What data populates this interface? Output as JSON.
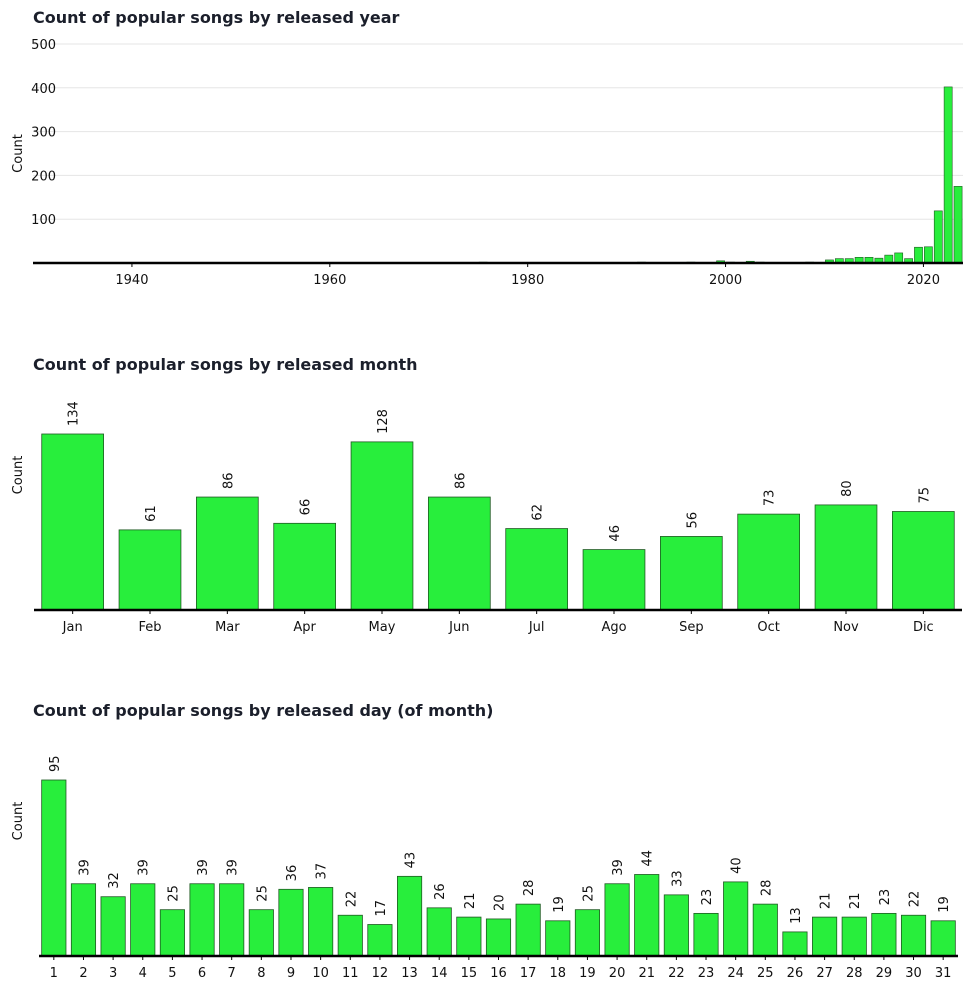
{
  "colors": {
    "bar_fill": "#28ee3c",
    "bar_stroke": "#1f5a22",
    "axis": "#000000",
    "grid": "#e5e5e5",
    "title": "#1b1f2b"
  },
  "chart_data": [
    {
      "type": "bar",
      "title": "Count of popular songs by released year",
      "xlabel": "",
      "ylabel": "Count",
      "x_ticks": [
        "1940",
        "1960",
        "1980",
        "2000",
        "2020"
      ],
      "y_ticks": [
        "100",
        "200",
        "300",
        "400",
        "500"
      ],
      "xlim": [
        1930,
        2024
      ],
      "ylim": [
        0,
        500
      ],
      "grid": true,
      "x": [
        1930,
        1942,
        1946,
        1950,
        1952,
        1957,
        1958,
        1959,
        1968,
        1970,
        1971,
        1973,
        1975,
        1979,
        1983,
        1984,
        1985,
        1986,
        1987,
        1991,
        1992,
        1994,
        1995,
        1996,
        1997,
        1998,
        1999,
        2000,
        2002,
        2003,
        2004,
        2005,
        2007,
        2008,
        2010,
        2011,
        2012,
        2013,
        2014,
        2015,
        2016,
        2017,
        2018,
        2019,
        2020,
        2021,
        2022,
        2023
      ],
      "values": [
        1,
        1,
        1,
        1,
        1,
        1,
        1,
        1,
        1,
        1,
        1,
        1,
        2,
        1,
        1,
        1,
        1,
        1,
        1,
        2,
        1,
        1,
        1,
        2,
        1,
        1,
        5,
        2,
        4,
        2,
        1,
        1,
        1,
        2,
        7,
        10,
        10,
        13,
        13,
        11,
        18,
        23,
        10,
        36,
        37,
        119,
        402,
        175
      ]
    },
    {
      "type": "bar",
      "title": "Count of popular songs by released month",
      "xlabel": "",
      "ylabel": "Count",
      "categories": [
        "Jan",
        "Feb",
        "Mar",
        "Apr",
        "May",
        "Jun",
        "Jul",
        "Ago",
        "Sep",
        "Oct",
        "Nov",
        "Dic"
      ],
      "values": [
        134,
        61,
        86,
        66,
        128,
        86,
        62,
        46,
        56,
        73,
        80,
        75
      ],
      "data_labels": [
        "134",
        "61",
        "86",
        "66",
        "128",
        "86",
        "62",
        "46",
        "56",
        "73",
        "80",
        "75"
      ]
    },
    {
      "type": "bar",
      "title": "Count of popular songs by released day (of month)",
      "xlabel": "",
      "ylabel": "Count",
      "categories": [
        "1",
        "2",
        "3",
        "4",
        "5",
        "6",
        "7",
        "8",
        "9",
        "10",
        "11",
        "12",
        "13",
        "14",
        "15",
        "16",
        "17",
        "18",
        "19",
        "20",
        "21",
        "22",
        "23",
        "24",
        "25",
        "26",
        "27",
        "28",
        "29",
        "30",
        "31"
      ],
      "values": [
        95,
        39,
        32,
        39,
        25,
        39,
        39,
        25,
        36,
        37,
        22,
        17,
        43,
        26,
        21,
        20,
        28,
        19,
        25,
        39,
        44,
        33,
        23,
        40,
        28,
        13,
        21,
        21,
        23,
        22,
        19
      ],
      "data_labels": [
        "95",
        "39",
        "32",
        "39",
        "25",
        "39",
        "39",
        "25",
        "36",
        "37",
        "22",
        "17",
        "43",
        "26",
        "21",
        "20",
        "28",
        "19",
        "25",
        "39",
        "44",
        "33",
        "23",
        "40",
        "28",
        "13",
        "21",
        "21",
        "23",
        "22",
        "19"
      ]
    }
  ]
}
